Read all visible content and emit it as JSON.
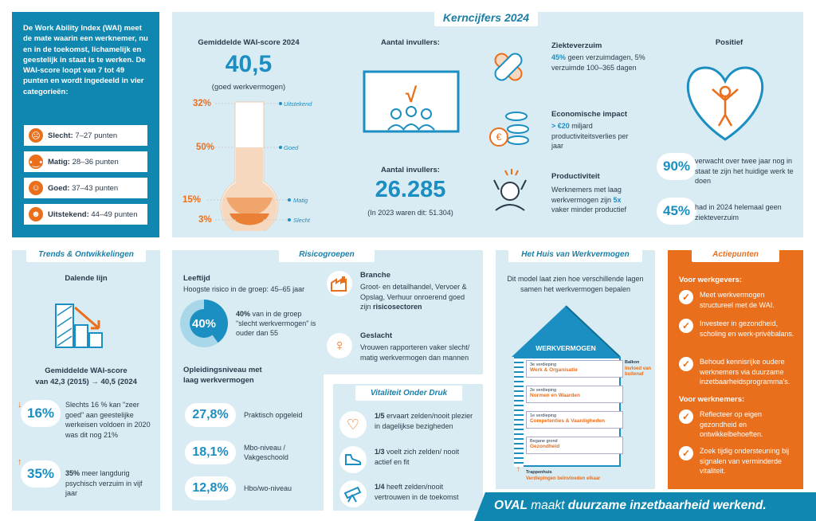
{
  "intro": {
    "text": "De Work Ability Index (WAI) meet de mate waarin een werknemer, nu en in de toekomst, lichamelijk en geestelijk in staat is te werken. De WAI-score loopt van 7 tot 49 punten en wordt ingedeeld in vier categorieën:",
    "categories": [
      {
        "label": "Slecht:",
        "range": "7–27 punten"
      },
      {
        "label": "Matig:",
        "range": "28–36 punten"
      },
      {
        "label": "Goed:",
        "range": "37–43 punten"
      },
      {
        "label": "Uitstekend:",
        "range": "44–49 punten"
      }
    ]
  },
  "kerncijfers": {
    "tag": "Kerncijfers 2024",
    "wai": {
      "title": "Gemiddelde WAI-score 2024",
      "score": "40,5",
      "sub": "(goed werkvermogen)",
      "levels": [
        {
          "pct": "32%",
          "label": "Uitstekend"
        },
        {
          "pct": "50%",
          "label": "Goed"
        },
        {
          "pct": "15%",
          "label": "Matig"
        },
        {
          "pct": "3%",
          "label": "Slecht"
        }
      ]
    },
    "invullers": {
      "title_top": "Aantal invullers:",
      "title": "Aantal invullers:",
      "number": "26.285",
      "sub": "(In 2023 waren dit: 51.304)"
    },
    "ziekteverzuim": {
      "title": "Ziekteverzuim",
      "highlight": "45%",
      "text1": " geen verzuimdagen,",
      "text2": "5% verzuimde 100–365 dagen"
    },
    "economisch": {
      "title": "Economische impact",
      "highlight": "> €20",
      "text1": " miljard",
      "text2": "productiviteitsverlies per jaar"
    },
    "productiviteit": {
      "title": "Productiviteit",
      "text1": "Werknemers met laag werkvermogen zijn ",
      "highlight": "5x",
      "text2": " vaker minder productief"
    },
    "positief": {
      "title": "Positief",
      "items": [
        {
          "pct": "90%",
          "text": "verwacht over twee jaar nog in staat te zijn het huidige werk te doen"
        },
        {
          "pct": "45%",
          "text": "had in 2024 helemaal geen ziekteverzuim"
        }
      ]
    }
  },
  "trends": {
    "tag": "Trends & Ontwikkelingen",
    "title": "Dalende lijn",
    "wai_title": "Gemiddelde WAI-score",
    "wai_text": "van 42,3 (2015) → 40,5 (2024",
    "items": [
      {
        "pct": "16%",
        "text": "Slechts 16 % kan \"zeer goed\" aan geestelijke werkeisen voldoen in 2020 was dit nog 21%"
      },
      {
        "pct": "35%",
        "text_bold": "35%",
        "text": " meer langdurig psychisch verzuim in vijf jaar"
      }
    ]
  },
  "risico": {
    "tag": "Risicogroepen",
    "leeftijd_title": "Leeftijd",
    "leeftijd_text": "Hoogste risico in de groep: 45–65 jaar",
    "donut_pct": "40%",
    "donut_text_bold": "40%",
    "donut_text": " van in de groep \"slecht werkvermogen\" is ouder dan 55",
    "opleiding_title": "Opleidingsniveau met laag werkvermogen",
    "opleiding": [
      {
        "pct": "27,8%",
        "label": "Praktisch opgeleid"
      },
      {
        "pct": "18,1%",
        "label": "Mbo-niveau / Vakgeschoold"
      },
      {
        "pct": "12,8%",
        "label": "Hbo/wo-niveau"
      }
    ],
    "branche_title": "Branche",
    "branche_text": "Groot- en detailhandel, Vervoer & Opslag, Verhuur onroerend goed zijn ",
    "branche_bold": "risicosectoren",
    "geslacht_title": "Geslacht",
    "geslacht_text": "Vrouwen rapporteren vaker slecht/ matig werkvermogen dan mannen"
  },
  "vitaliteit": {
    "tag": "Vitaliteit Onder Druk",
    "items": [
      {
        "bold": "1/5",
        "text": " ervaart zelden/nooit plezier in dagelijkse bezigheden"
      },
      {
        "bold": "1/3",
        "text": " voelt zich zelden/ nooit actief en fit"
      },
      {
        "bold": "1/4",
        "text": " heeft zelden/nooit vertrouwen in de toekomst"
      }
    ]
  },
  "huis": {
    "tag": "Het Huis van Werkvermogen",
    "intro": "Dit model laat zien hoe verschillende lagen samen het werkvermogen bepalen",
    "roof": "WERKVERMOGEN",
    "balkon_label": "Balkon",
    "balkon_text": "Invloed van buitenaf",
    "floors": [
      {
        "level": "3e verdieping",
        "name": "Werk & Organisatie"
      },
      {
        "level": "2e verdieping",
        "name": "Normen en Waarden"
      },
      {
        "level": "1e verdieping",
        "name": "Competenties & Vaardigheden"
      },
      {
        "level": "Begane grond",
        "name": "Gezondheid"
      }
    ],
    "trap_label": "Trappenhuis",
    "trap_text": "Verdiepingen beïnvloeden elkaar"
  },
  "actie": {
    "tag": "Actiepunten",
    "werkgevers_title": "Voor werkgevers:",
    "werkgevers": [
      "Meet werkvermogen structureel met de WAI.",
      "Investeer in gezondheid, scholing en werk-privébalans.",
      "Behoud kennisrijke oudere werknemers via duurzame inzetbaarheidsprogramma's."
    ],
    "werknemers_title": "Voor werknemers:",
    "werknemers": [
      "Reflecteer op eigen gezondheid en ontwikkelbehoeften.",
      "Zoek tijdig ondersteuning bij signalen van verminderde vitaliteit."
    ]
  },
  "footer": {
    "brand": "OVAL",
    "text1": " maakt ",
    "text2": "duurzame inzetbaarheid werkend."
  },
  "colors": {
    "blue": "#0f87b0",
    "light": "#d9ecf4",
    "orange": "#ea6f1d"
  }
}
